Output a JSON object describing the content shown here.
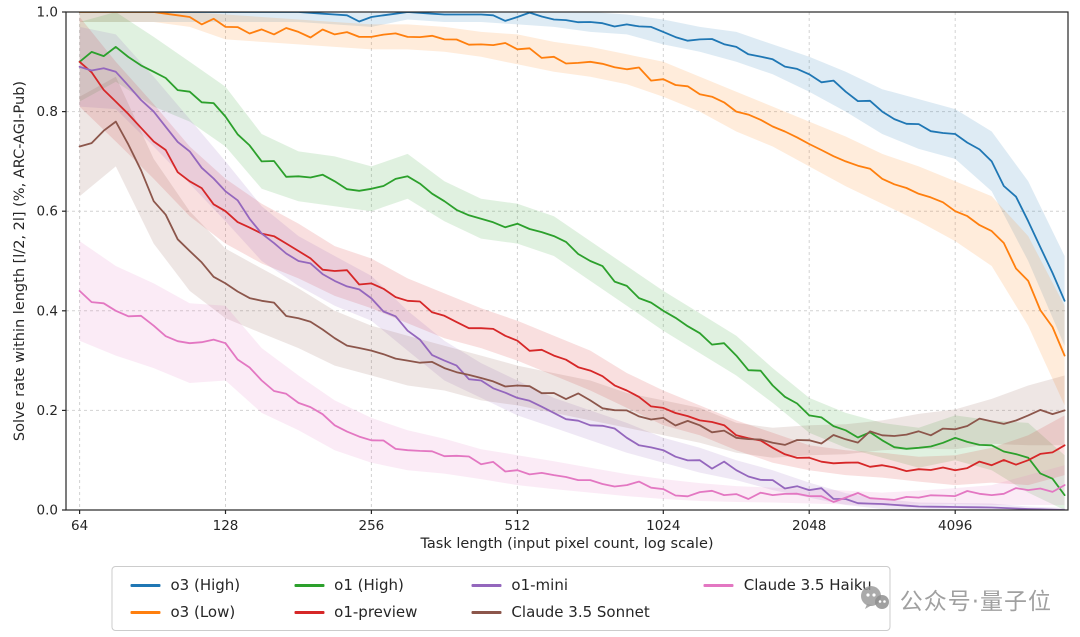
{
  "chart_data": {
    "type": "line",
    "title": "",
    "xlabel": "Task length (input pixel count, log scale)",
    "ylabel": "Solve rate within length [l/2, 2l] (%, ARC-AGI-Pub)",
    "x_scale": "log",
    "xlim": [
      60,
      7000
    ],
    "ylim": [
      0,
      1
    ],
    "grid": true,
    "legend_position": "bottom",
    "x_ticks": [
      64,
      128,
      256,
      512,
      1024,
      2048,
      4096
    ],
    "y_ticks": [
      0.0,
      0.2,
      0.4,
      0.6,
      0.8,
      1.0
    ],
    "x": [
      64,
      76,
      91,
      108,
      128,
      152,
      181,
      215,
      256,
      304,
      362,
      431,
      512,
      609,
      724,
      861,
      1024,
      1218,
      1448,
      1722,
      2048,
      2435,
      2896,
      3444,
      4096,
      4871,
      5793,
      6889
    ],
    "series": [
      {
        "name": "o3 (High)",
        "color": "#1f77b4",
        "values": [
          1.0,
          1.0,
          1.0,
          1.0,
          1.0,
          1.0,
          1.0,
          0.995,
          0.99,
          1.0,
          0.995,
          0.995,
          0.99,
          0.985,
          0.98,
          0.975,
          0.96,
          0.945,
          0.93,
          0.905,
          0.875,
          0.84,
          0.8,
          0.775,
          0.755,
          0.7,
          0.58,
          0.42
        ],
        "band": [
          0.02,
          0.02,
          0.02,
          0.02,
          0.02,
          0.02,
          0.02,
          0.02,
          0.02,
          0.015,
          0.015,
          0.015,
          0.015,
          0.015,
          0.02,
          0.02,
          0.025,
          0.025,
          0.03,
          0.03,
          0.035,
          0.04,
          0.045,
          0.05,
          0.05,
          0.06,
          0.08,
          0.09
        ]
      },
      {
        "name": "o3 (Low)",
        "color": "#ff7f0e",
        "values": [
          1.0,
          1.0,
          1.0,
          0.99,
          0.97,
          0.965,
          0.96,
          0.955,
          0.95,
          0.95,
          0.945,
          0.935,
          0.925,
          0.91,
          0.9,
          0.885,
          0.865,
          0.835,
          0.8,
          0.77,
          0.735,
          0.7,
          0.665,
          0.635,
          0.6,
          0.56,
          0.46,
          0.31
        ],
        "band": [
          0.02,
          0.02,
          0.02,
          0.02,
          0.025,
          0.025,
          0.025,
          0.025,
          0.025,
          0.025,
          0.025,
          0.025,
          0.03,
          0.03,
          0.03,
          0.03,
          0.035,
          0.035,
          0.04,
          0.04,
          0.045,
          0.05,
          0.05,
          0.055,
          0.06,
          0.07,
          0.09,
          0.1
        ]
      },
      {
        "name": "o1 (High)",
        "color": "#2ca02c",
        "values": [
          0.9,
          0.93,
          0.88,
          0.84,
          0.79,
          0.7,
          0.67,
          0.66,
          0.645,
          0.67,
          0.62,
          0.585,
          0.575,
          0.55,
          0.5,
          0.45,
          0.4,
          0.355,
          0.31,
          0.25,
          0.19,
          0.16,
          0.14,
          0.125,
          0.145,
          0.13,
          0.105,
          0.03
        ],
        "band": [
          0.08,
          0.07,
          0.07,
          0.06,
          0.06,
          0.055,
          0.05,
          0.05,
          0.045,
          0.045,
          0.04,
          0.04,
          0.04,
          0.04,
          0.04,
          0.04,
          0.04,
          0.04,
          0.04,
          0.035,
          0.035,
          0.035,
          0.035,
          0.04,
          0.045,
          0.05,
          0.07,
          0.08
        ]
      },
      {
        "name": "o1-preview",
        "color": "#d62728",
        "values": [
          0.9,
          0.82,
          0.74,
          0.66,
          0.6,
          0.555,
          0.52,
          0.48,
          0.455,
          0.42,
          0.39,
          0.365,
          0.34,
          0.31,
          0.28,
          0.24,
          0.205,
          0.18,
          0.15,
          0.125,
          0.105,
          0.095,
          0.09,
          0.082,
          0.08,
          0.09,
          0.1,
          0.13
        ],
        "band": [
          0.09,
          0.08,
          0.075,
          0.07,
          0.065,
          0.06,
          0.055,
          0.05,
          0.05,
          0.045,
          0.045,
          0.04,
          0.04,
          0.04,
          0.04,
          0.035,
          0.035,
          0.03,
          0.03,
          0.03,
          0.025,
          0.025,
          0.025,
          0.025,
          0.03,
          0.035,
          0.05,
          0.06
        ]
      },
      {
        "name": "o1-mini",
        "color": "#9467bd",
        "values": [
          0.89,
          0.88,
          0.8,
          0.72,
          0.64,
          0.555,
          0.5,
          0.46,
          0.425,
          0.36,
          0.3,
          0.26,
          0.225,
          0.195,
          0.17,
          0.145,
          0.12,
          0.1,
          0.08,
          0.06,
          0.04,
          0.022,
          0.012,
          0.007,
          0.006,
          0.005,
          0.002,
          0.0
        ],
        "band": [
          0.08,
          0.075,
          0.07,
          0.065,
          0.06,
          0.055,
          0.05,
          0.05,
          0.045,
          0.04,
          0.04,
          0.035,
          0.035,
          0.03,
          0.03,
          0.03,
          0.025,
          0.025,
          0.02,
          0.02,
          0.015,
          0.012,
          0.01,
          0.008,
          0.008,
          0.008,
          0.005,
          0.004
        ]
      },
      {
        "name": "Claude 3.5 Sonnet",
        "color": "#8c564b",
        "values": [
          0.73,
          0.78,
          0.62,
          0.52,
          0.455,
          0.42,
          0.385,
          0.345,
          0.32,
          0.3,
          0.285,
          0.265,
          0.25,
          0.235,
          0.22,
          0.2,
          0.185,
          0.17,
          0.145,
          0.135,
          0.14,
          0.142,
          0.15,
          0.158,
          0.162,
          0.178,
          0.19,
          0.2
        ],
        "band": [
          0.1,
          0.09,
          0.085,
          0.08,
          0.07,
          0.065,
          0.06,
          0.055,
          0.05,
          0.05,
          0.045,
          0.045,
          0.04,
          0.04,
          0.04,
          0.035,
          0.035,
          0.035,
          0.03,
          0.03,
          0.03,
          0.03,
          0.03,
          0.035,
          0.04,
          0.045,
          0.06,
          0.07
        ]
      },
      {
        "name": "Claude 3.5 Haiku",
        "color": "#e377c2",
        "values": [
          0.44,
          0.4,
          0.37,
          0.335,
          0.335,
          0.26,
          0.215,
          0.17,
          0.14,
          0.12,
          0.108,
          0.092,
          0.08,
          0.07,
          0.06,
          0.05,
          0.042,
          0.036,
          0.032,
          0.03,
          0.028,
          0.025,
          0.022,
          0.025,
          0.028,
          0.03,
          0.04,
          0.05
        ],
        "band": [
          0.1,
          0.09,
          0.085,
          0.08,
          0.075,
          0.065,
          0.055,
          0.05,
          0.045,
          0.04,
          0.035,
          0.03,
          0.03,
          0.028,
          0.025,
          0.022,
          0.02,
          0.018,
          0.016,
          0.015,
          0.015,
          0.014,
          0.013,
          0.014,
          0.016,
          0.02,
          0.03,
          0.04
        ]
      }
    ]
  },
  "watermark": {
    "text": "公众号·量子位"
  }
}
